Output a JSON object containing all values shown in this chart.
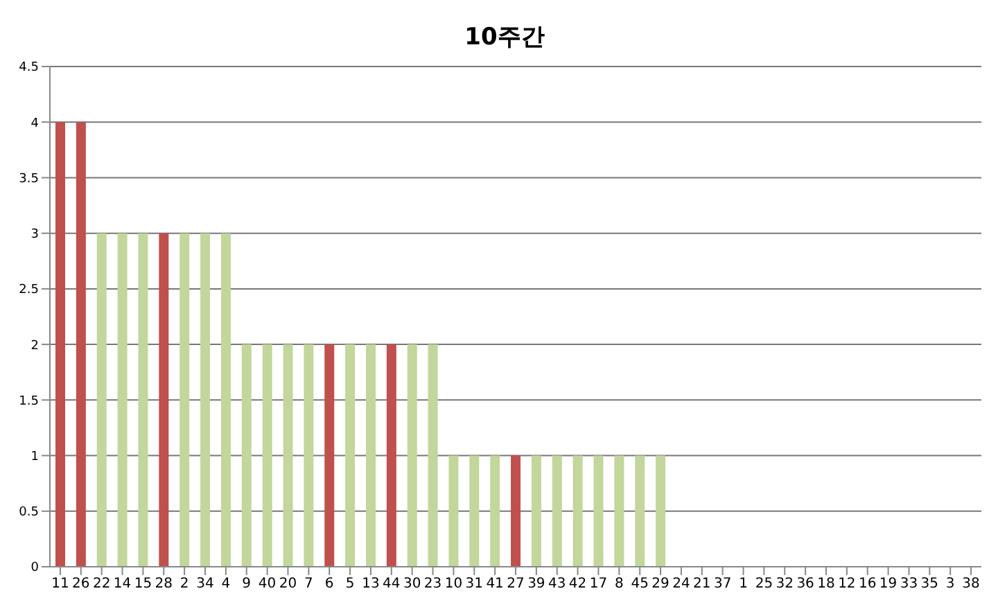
{
  "chart_data": {
    "type": "bar",
    "title": "10주간",
    "categories": [
      "11",
      "26",
      "22",
      "14",
      "15",
      "28",
      "2",
      "34",
      "4",
      "9",
      "40",
      "20",
      "7",
      "6",
      "5",
      "13",
      "44",
      "30",
      "23",
      "10",
      "31",
      "41",
      "27",
      "39",
      "43",
      "42",
      "17",
      "8",
      "45",
      "29",
      "24",
      "21",
      "37",
      "1",
      "25",
      "32",
      "36",
      "18",
      "12",
      "16",
      "19",
      "33",
      "35",
      "3",
      "38"
    ],
    "values": [
      4,
      4,
      3,
      3,
      3,
      3,
      3,
      3,
      3,
      2,
      2,
      2,
      2,
      2,
      2,
      2,
      2,
      2,
      2,
      1,
      1,
      1,
      1,
      1,
      1,
      1,
      1,
      1,
      1,
      1,
      0,
      0,
      0,
      0,
      0,
      0,
      0,
      0,
      0,
      0,
      0,
      0,
      0,
      0,
      0
    ],
    "colors": [
      "#c0504d",
      "#c0504d",
      "#c3d69b",
      "#c3d69b",
      "#c3d69b",
      "#c0504d",
      "#c3d69b",
      "#c3d69b",
      "#c3d69b",
      "#c3d69b",
      "#c3d69b",
      "#c3d69b",
      "#c3d69b",
      "#c0504d",
      "#c3d69b",
      "#c3d69b",
      "#c0504d",
      "#c3d69b",
      "#c3d69b",
      "#c3d69b",
      "#c3d69b",
      "#c3d69b",
      "#c0504d",
      "#c3d69b",
      "#c3d69b",
      "#c3d69b",
      "#c3d69b",
      "#c3d69b",
      "#c3d69b",
      "#c3d69b",
      "#c3d69b",
      "#c3d69b",
      "#c3d69b",
      "#c3d69b",
      "#c3d69b",
      "#c3d69b",
      "#c3d69b",
      "#c3d69b",
      "#c3d69b",
      "#c3d69b",
      "#c3d69b",
      "#c3d69b",
      "#c3d69b",
      "#c3d69b",
      "#c3d69b"
    ],
    "ylim": [
      0,
      4.5
    ],
    "yticks": [
      0,
      0.5,
      1,
      1.5,
      2,
      2.5,
      3,
      3.5,
      4,
      4.5
    ],
    "grid": "y"
  }
}
